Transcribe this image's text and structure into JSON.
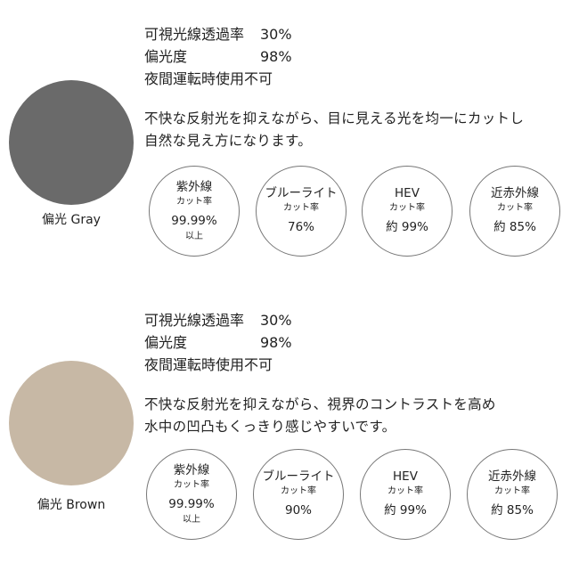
{
  "colors": {
    "gray": "#6a6a6a",
    "brown": "#c7b8a5",
    "badge_border": "#777777"
  },
  "sections": [
    {
      "label": "偏光 Gray",
      "specs": [
        {
          "k": "可視光線透過率",
          "v": "30%"
        },
        {
          "k": "偏光度",
          "v": "98%"
        },
        {
          "k": "夜間運転時使用不可",
          "v": ""
        }
      ],
      "desc": [
        "不快な反射光を抑えながら、目に見える光を均一にカットし",
        "自然な見え方になります。"
      ],
      "badges": [
        {
          "title": "紫外線",
          "sub": "カット率",
          "value": "99.99%",
          "note": "以上"
        },
        {
          "title": "ブルーライト",
          "sub": "カット率",
          "value": "76%",
          "note": ""
        },
        {
          "title": "HEV",
          "sub": "カット率",
          "value": "約 99%",
          "note": ""
        },
        {
          "title": "近赤外線",
          "sub": "カット率",
          "value": "約 85%",
          "note": ""
        }
      ]
    },
    {
      "label": "偏光 Brown",
      "specs": [
        {
          "k": "可視光線透過率",
          "v": "30%"
        },
        {
          "k": "偏光度",
          "v": "98%"
        },
        {
          "k": "夜間運転時使用不可",
          "v": ""
        }
      ],
      "desc": [
        "不快な反射光を抑えながら、視界のコントラストを高め",
        "水中の凹凸もくっきり感じやすいです。"
      ],
      "badges": [
        {
          "title": "紫外線",
          "sub": "カット率",
          "value": "99.99%",
          "note": "以上"
        },
        {
          "title": "ブルーライト",
          "sub": "カット率",
          "value": "90%",
          "note": ""
        },
        {
          "title": "HEV",
          "sub": "カット率",
          "value": "約 99%",
          "note": ""
        },
        {
          "title": "近赤外線",
          "sub": "カット率",
          "value": "約 85%",
          "note": ""
        }
      ]
    }
  ]
}
